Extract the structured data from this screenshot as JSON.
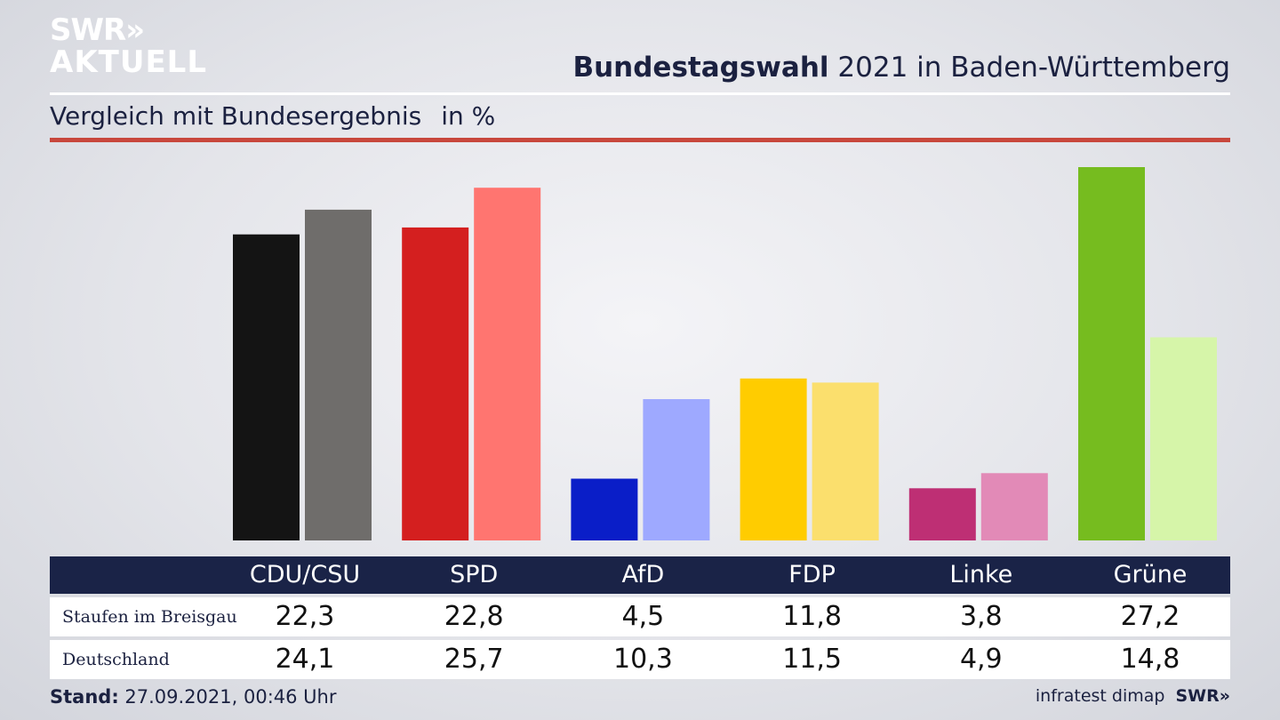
{
  "branding": {
    "logo_line1": "SWR»",
    "logo_line2": "AKTUELL",
    "source": "infratest dimap",
    "source_logo": "SWR»"
  },
  "header": {
    "title_bold": "Bundestagswahl",
    "title_rest": " 2021 in Baden-Württemberg",
    "subtitle": "Vergleich mit Bundesergebnis",
    "unit": "in %"
  },
  "footer": {
    "stand_label": "Stand:",
    "stand_value": " 27.09.2021, 00:46 Uhr"
  },
  "colors": {
    "header_bar": "#1a2347",
    "accent_rule": "#c8473c"
  },
  "chart_data": {
    "type": "bar",
    "categories": [
      "CDU/CSU",
      "SPD",
      "AfD",
      "FDP",
      "Linke",
      "Grüne"
    ],
    "series": [
      {
        "name": "Staufen im Breisgau",
        "values": [
          22.3,
          22.8,
          4.5,
          11.8,
          3.8,
          27.2
        ],
        "labels": [
          "22,3",
          "22,8",
          "4,5",
          "11,8",
          "3,8",
          "27,2"
        ],
        "colors": [
          "#141414",
          "#d41f1f",
          "#0a1ec8",
          "#ffcc00",
          "#be2f74",
          "#76bc1f"
        ]
      },
      {
        "name": "Deutschland",
        "values": [
          24.1,
          25.7,
          10.3,
          11.5,
          4.9,
          14.8
        ],
        "labels": [
          "24,1",
          "25,7",
          "10,3",
          "11,5",
          "4,9",
          "14,8"
        ],
        "colors": [
          "#6f6d6b",
          "#ff7570",
          "#9ea9ff",
          "#fbdf6d",
          "#e28ab7",
          "#d6f5a9"
        ]
      }
    ],
    "ylim": [
      0,
      27.2
    ],
    "grid": false,
    "legend": "table-below"
  }
}
